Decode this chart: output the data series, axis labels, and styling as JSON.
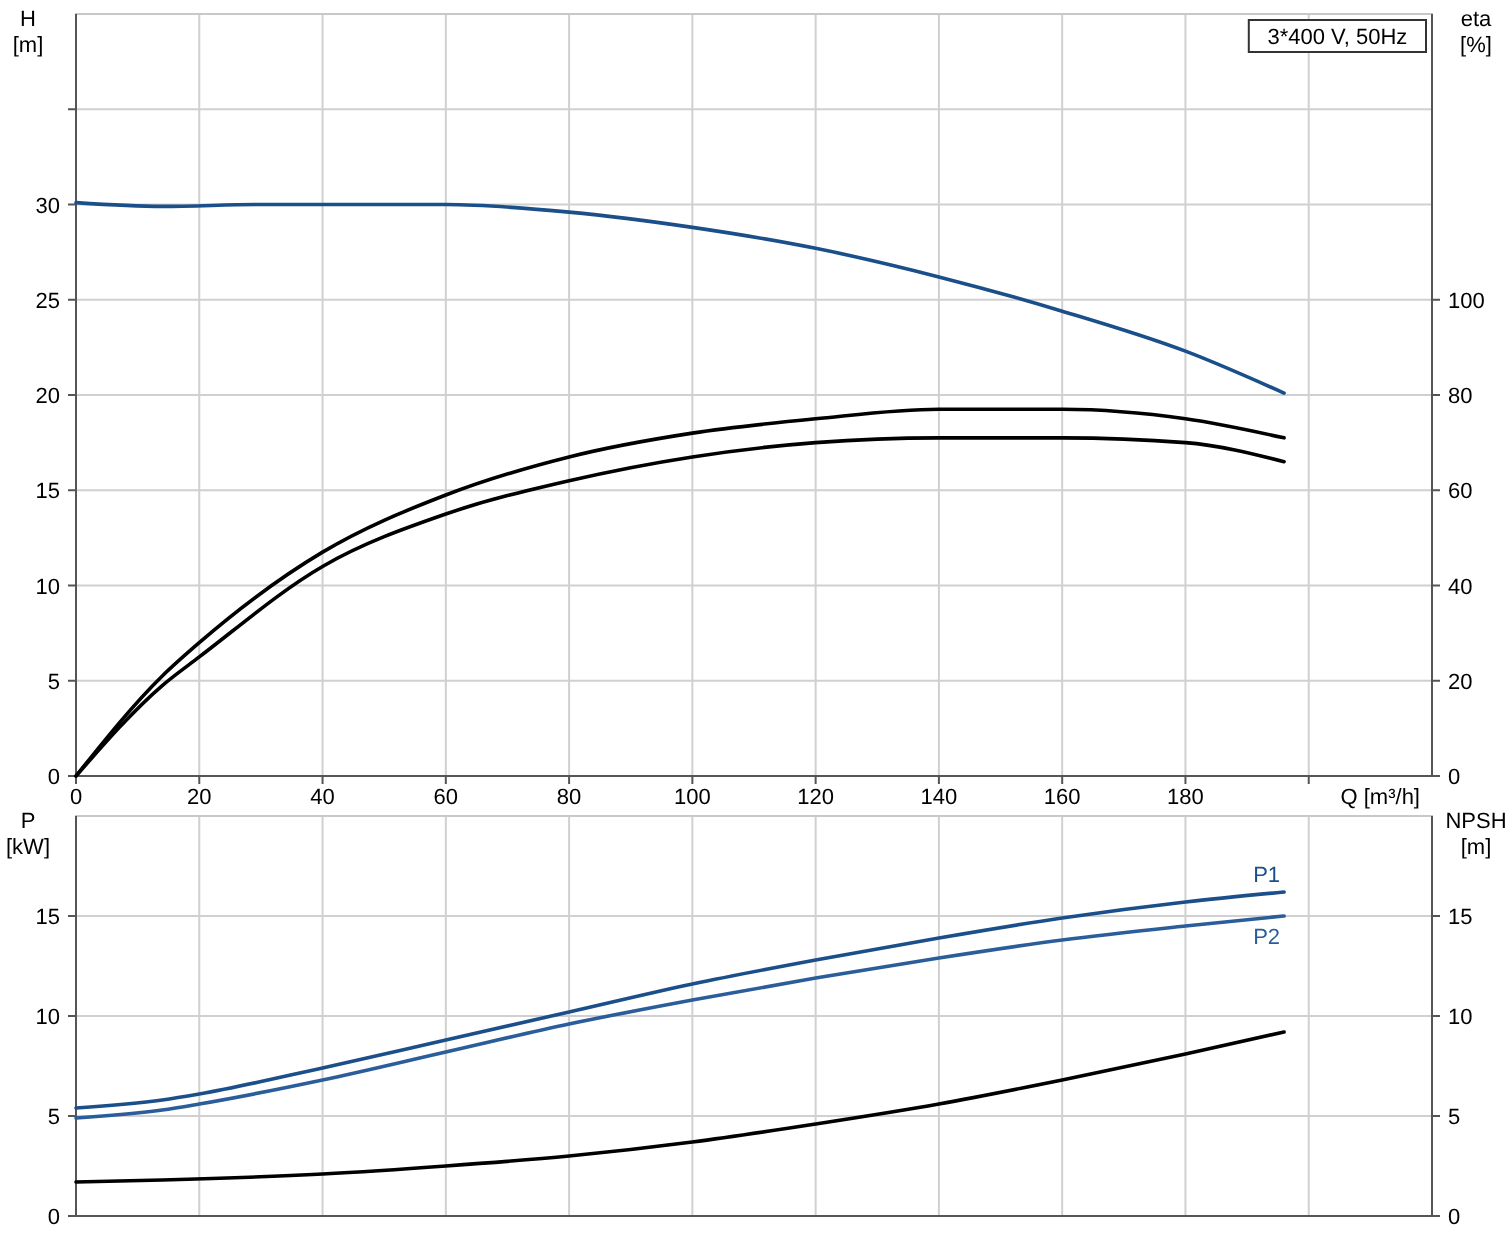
{
  "chart_data": [
    {
      "type": "line",
      "annotations": [
        "3*400 V, 50Hz"
      ],
      "xlabel": "Q [m³/h]",
      "ylabel": "H [m]",
      "y2label": "eta [%]",
      "xlim": [
        0,
        220
      ],
      "xticks": [
        0,
        20,
        40,
        60,
        80,
        100,
        120,
        140,
        160,
        180,
        {
          "value": 200,
          "label": null
        }
      ],
      "ylim": [
        0,
        40
      ],
      "yticks": [
        0,
        5,
        10,
        15,
        20,
        25,
        30,
        {
          "value": 35,
          "label": null
        }
      ],
      "y2lim": [
        0,
        160
      ],
      "y2ticks": [
        0,
        20,
        40,
        60,
        80,
        100
      ],
      "grid": true,
      "marker": "none",
      "line_style": "solid",
      "series": [
        {
          "color": "#1b4f8a",
          "x": [
            0,
            14,
            30,
            50,
            60,
            80,
            100,
            120,
            140,
            160,
            180,
            196
          ],
          "values": [
            30.1,
            29.9,
            30,
            30,
            30,
            29.6,
            28.8,
            27.7,
            26.2,
            24.4,
            22.3,
            20.1
          ]
        },
        {
          "color": "#000000",
          "axis": "y2",
          "x": [
            0,
            14,
            20,
            40,
            60,
            80,
            100,
            120,
            140,
            160,
            180,
            196
          ],
          "values": [
            0,
            21,
            28,
            47,
            59,
            67,
            72,
            75,
            77,
            77,
            75,
            71
          ]
        },
        {
          "color": "#000000",
          "axis": "y2",
          "x": [
            0,
            14,
            20,
            40,
            60,
            80,
            100,
            120,
            140,
            160,
            180,
            196
          ],
          "values": [
            0,
            19,
            25,
            44,
            55,
            62,
            67,
            70,
            71,
            71,
            70,
            66
          ]
        }
      ]
    },
    {
      "type": "line",
      "ylabel": "P [kW]",
      "y2label": "NPSH [m]",
      "xlim": [
        0,
        220
      ],
      "xticks": [
        0,
        20,
        40,
        60,
        80,
        100,
        120,
        140,
        160,
        180,
        200
      ],
      "ylim": [
        0,
        20
      ],
      "yticks": [
        0,
        5,
        10,
        15
      ],
      "y2lim": [
        0,
        20
      ],
      "y2ticks": [
        0,
        5,
        10,
        15
      ],
      "tick_labels": "y",
      "grid": true,
      "marker": "none",
      "line_style": "solid",
      "series": [
        {
          "name": "P1",
          "color": "#1b4f8a",
          "x": [
            0,
            14,
            20,
            40,
            60,
            80,
            100,
            120,
            140,
            160,
            180,
            196
          ],
          "values": [
            5.4,
            5.8,
            6.1,
            7.4,
            8.8,
            10.2,
            11.6,
            12.8,
            13.9,
            14.9,
            15.7,
            16.2
          ]
        },
        {
          "name": "P2",
          "color": "#2a5d9a",
          "x": [
            0,
            14,
            20,
            40,
            60,
            80,
            100,
            120,
            140,
            160,
            180,
            196
          ],
          "values": [
            4.9,
            5.3,
            5.6,
            6.8,
            8.2,
            9.6,
            10.8,
            11.9,
            12.9,
            13.8,
            14.5,
            15.0
          ]
        },
        {
          "color": "#000000",
          "axis": "y2",
          "x": [
            0,
            14,
            40,
            60,
            80,
            100,
            120,
            140,
            160,
            180,
            196
          ],
          "values": [
            1.7,
            1.8,
            2.1,
            2.5,
            3.0,
            3.7,
            4.6,
            5.6,
            6.8,
            8.1,
            9.2
          ]
        }
      ]
    }
  ]
}
